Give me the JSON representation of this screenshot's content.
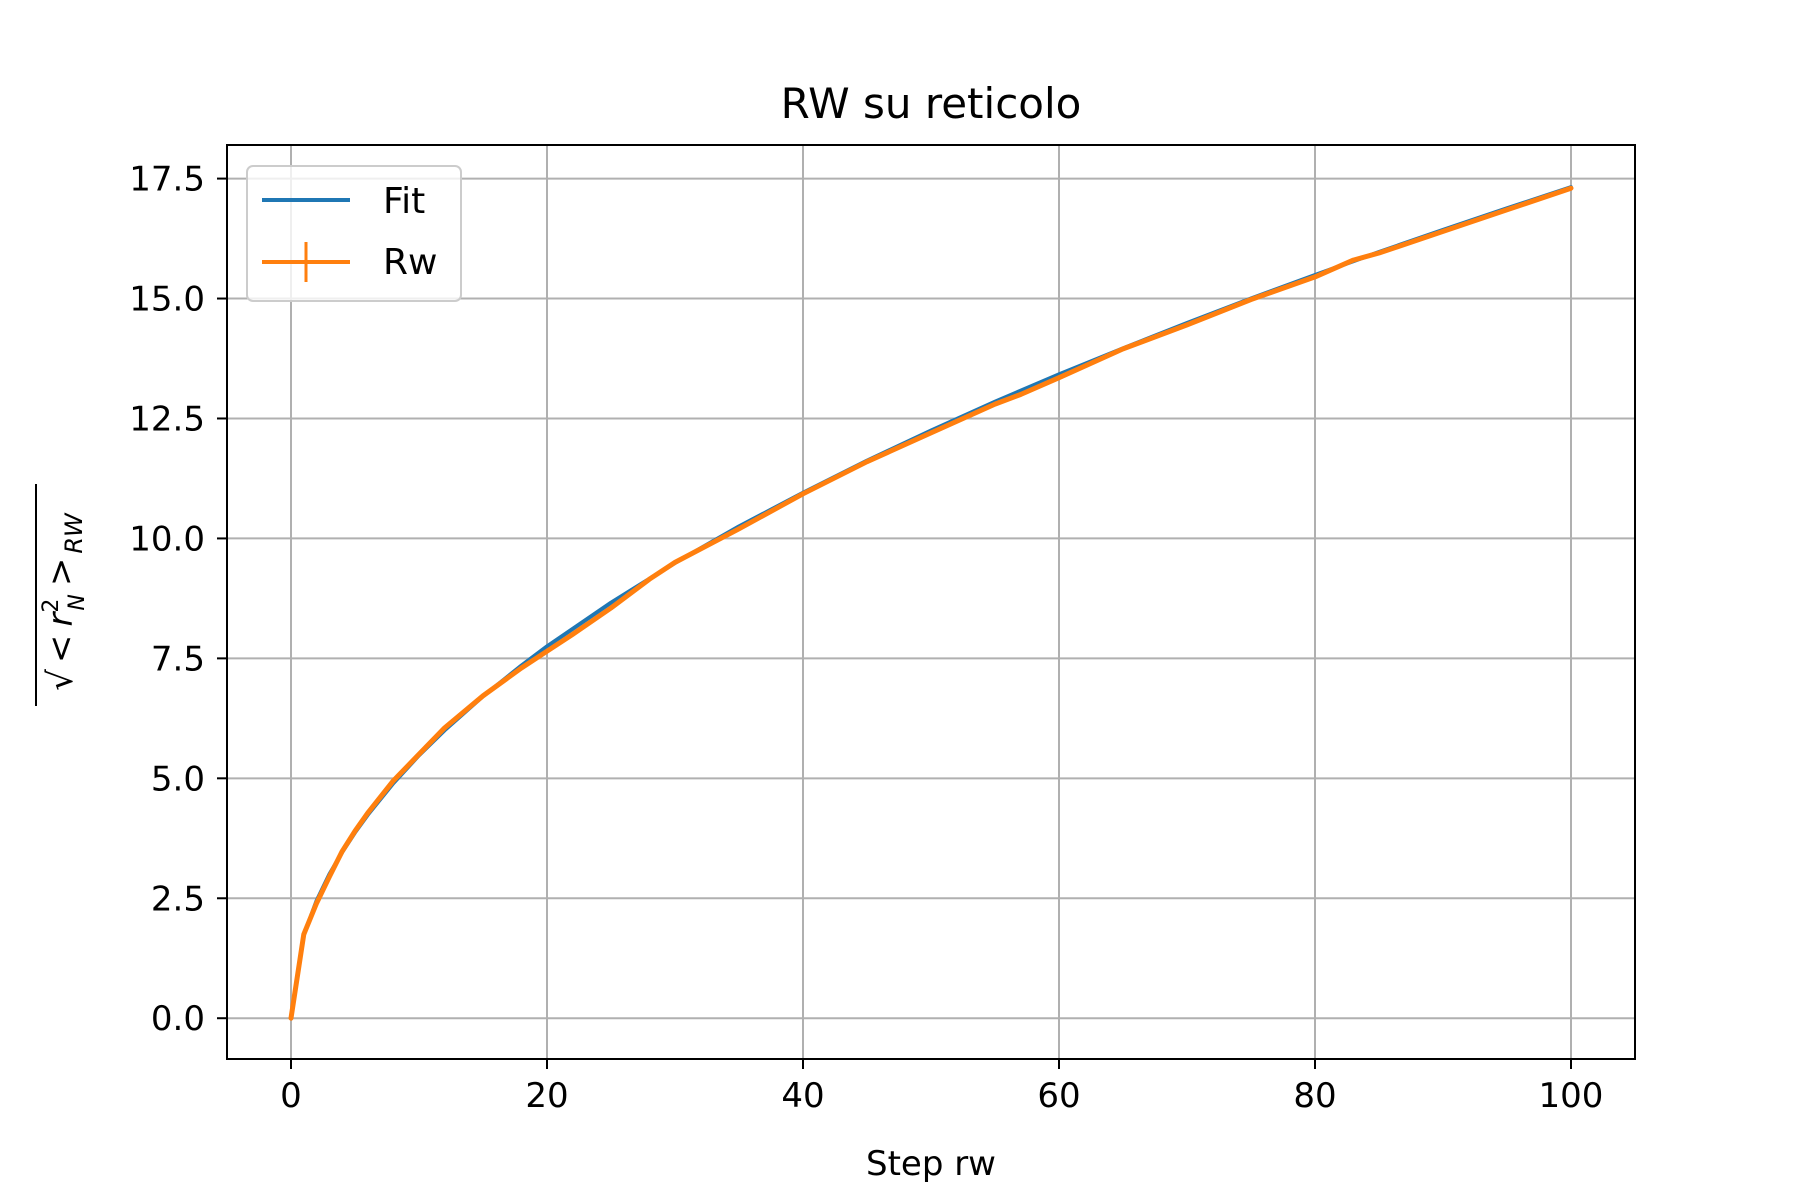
{
  "chart_data": {
    "type": "line",
    "title": "RW su reticolo",
    "xlabel": "Step rw",
    "ylabel": "√<r_N²>_RW",
    "xlim": [
      -5,
      105
    ],
    "ylim": [
      -0.85,
      18.2
    ],
    "xticks": [
      0,
      20,
      40,
      60,
      80,
      100
    ],
    "xtick_labels": [
      "0",
      "20",
      "40",
      "60",
      "80",
      "100"
    ],
    "yticks": [
      0,
      2.5,
      5,
      7.5,
      10,
      12.5,
      15,
      17.5
    ],
    "ytick_labels": [
      "0.0",
      "2.5",
      "5.0",
      "7.5",
      "10.0",
      "12.5",
      "15.0",
      "17.5"
    ],
    "grid": true,
    "legend_position": "top-left",
    "series": [
      {
        "name": "Fit",
        "color": "#1f77b4",
        "x": [
          0,
          1,
          2,
          3,
          4,
          5,
          6,
          8,
          10,
          12,
          15,
          18,
          20,
          25,
          30,
          35,
          40,
          45,
          50,
          55,
          60,
          65,
          70,
          75,
          80,
          85,
          90,
          95,
          100
        ],
        "y": [
          0.0,
          1.73,
          2.45,
          3.0,
          3.46,
          3.87,
          4.24,
          4.9,
          5.48,
          6.0,
          6.71,
          7.35,
          7.75,
          8.66,
          9.49,
          10.25,
          10.95,
          11.62,
          12.25,
          12.85,
          13.42,
          13.96,
          14.49,
          15.0,
          15.49,
          15.97,
          16.43,
          16.88,
          17.32
        ]
      },
      {
        "name": "Rw",
        "color": "#ff7f0e",
        "x": [
          0,
          1,
          2,
          3,
          4,
          5,
          6,
          8,
          10,
          12,
          15,
          18,
          20,
          22,
          25,
          28,
          30,
          35,
          40,
          45,
          50,
          55,
          57,
          60,
          65,
          70,
          75,
          80,
          83,
          85,
          90,
          95,
          100
        ],
        "y": [
          0.0,
          1.75,
          2.4,
          2.95,
          3.48,
          3.9,
          4.28,
          4.95,
          5.5,
          6.05,
          6.72,
          7.3,
          7.65,
          8.0,
          8.55,
          9.15,
          9.5,
          10.2,
          10.93,
          11.6,
          12.2,
          12.8,
          13.0,
          13.35,
          13.95,
          14.45,
          14.98,
          15.45,
          15.8,
          15.95,
          16.4,
          16.85,
          17.3
        ]
      }
    ]
  }
}
